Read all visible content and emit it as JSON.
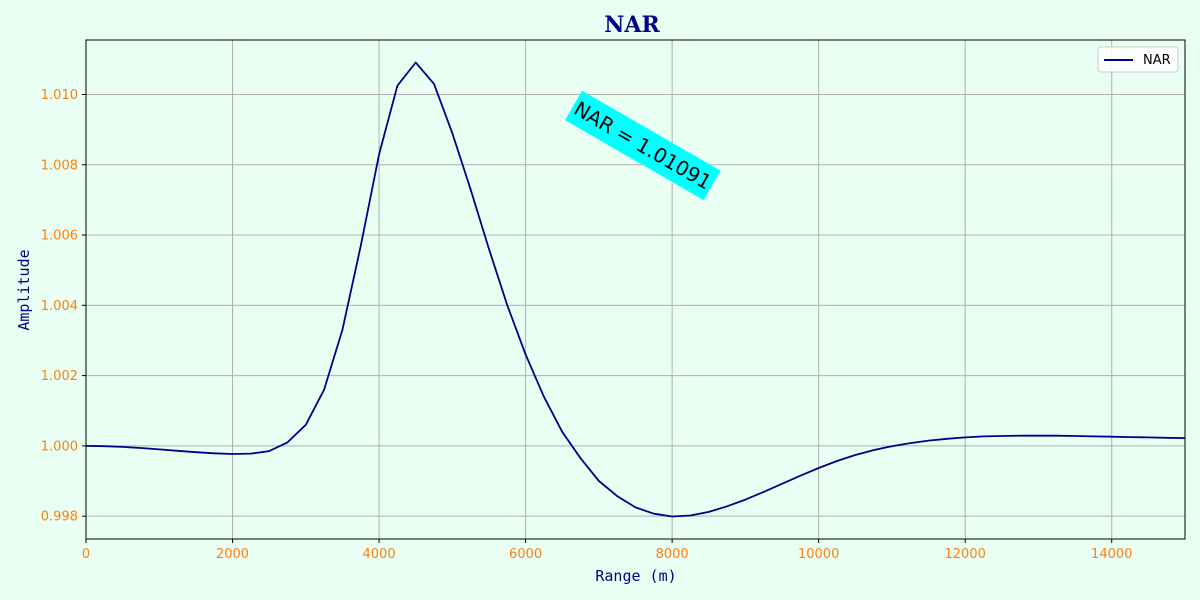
{
  "chart_data": {
    "type": "line",
    "title": "NAR",
    "xlabel": "Range (m)",
    "ylabel": "Amplitude",
    "xlim": [
      0,
      15000
    ],
    "ylim": [
      0.99735,
      1.01155
    ],
    "x_ticks": [
      0,
      2000,
      4000,
      6000,
      8000,
      10000,
      12000,
      14000
    ],
    "x_tick_labels": [
      "0",
      "2000",
      "4000",
      "6000",
      "8000",
      "10000",
      "12000",
      "14000"
    ],
    "y_ticks": [
      0.998,
      1.0,
      1.002,
      1.004,
      1.006,
      1.008,
      1.01
    ],
    "y_tick_labels": [
      "0.998",
      "1.000",
      "1.002",
      "1.004",
      "1.006",
      "1.008",
      "1.010"
    ],
    "grid": true,
    "legend": {
      "position": "top-right",
      "entries": [
        "NAR"
      ]
    },
    "colors": {
      "line": "#00008b",
      "title": "#00008b",
      "axis_label": "#00008b",
      "tick_label": "#ff7f0e",
      "annotation_bg": "#00ffff",
      "background": "#eafff4",
      "grid": "#b0b0b0"
    },
    "annotation": {
      "text": "NAR = 1.01091",
      "x": 7600,
      "y": 1.00855,
      "rotation": -30
    },
    "series": [
      {
        "name": "NAR",
        "x": [
          0,
          250,
          500,
          750,
          1000,
          1250,
          1500,
          1750,
          2000,
          2250,
          2500,
          2750,
          3000,
          3250,
          3500,
          3750,
          4000,
          4250,
          4500,
          4750,
          5000,
          5250,
          5500,
          5750,
          6000,
          6250,
          6500,
          6750,
          7000,
          7250,
          7500,
          7750,
          8000,
          8250,
          8500,
          8750,
          9000,
          9250,
          9500,
          9750,
          10000,
          10250,
          10500,
          10750,
          11000,
          11250,
          11500,
          11750,
          12000,
          12250,
          12500,
          12750,
          13000,
          13250,
          13500,
          13750,
          14000,
          14250,
          14500,
          14750,
          15000
        ],
        "y": [
          1.0,
          0.99999,
          0.99997,
          0.99994,
          0.9999,
          0.99986,
          0.99982,
          0.99979,
          0.99977,
          0.99978,
          0.99985,
          1.0001,
          1.0006,
          1.0016,
          1.0033,
          1.0057,
          1.0083,
          1.01025,
          1.01091,
          1.0103,
          1.0089,
          1.0073,
          1.0056,
          1.004,
          1.0026,
          1.0014,
          1.0004,
          0.99965,
          0.999,
          0.99857,
          0.99825,
          0.99807,
          0.99799,
          0.99802,
          0.99812,
          0.99828,
          0.99847,
          0.99869,
          0.99892,
          0.99915,
          0.99937,
          0.99957,
          0.99974,
          0.99988,
          0.99999,
          1.00008,
          1.00015,
          1.0002,
          1.00024,
          1.00027,
          1.00028,
          1.00029,
          1.00029,
          1.00029,
          1.00028,
          1.00027,
          1.00026,
          1.00025,
          1.00024,
          1.00023,
          1.00022
        ]
      }
    ]
  }
}
